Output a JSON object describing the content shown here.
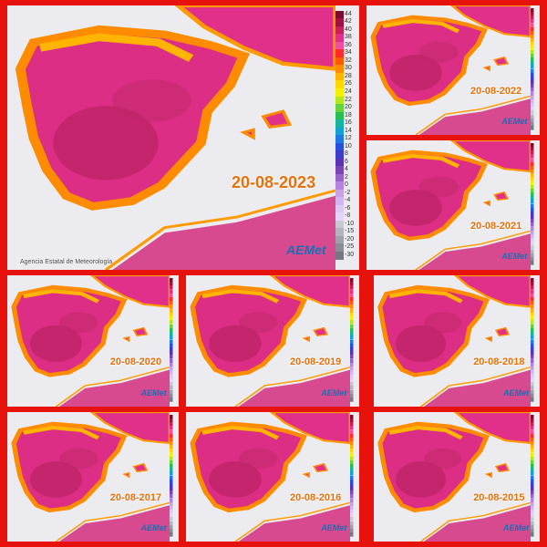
{
  "main": {
    "date": "20-08-2023",
    "scale_labels": [
      "44",
      "42",
      "40",
      "38",
      "36",
      "34",
      "32",
      "30",
      "28",
      "26",
      "24",
      "22",
      "20",
      "18",
      "16",
      "14",
      "12",
      "10",
      "8",
      "6",
      "4",
      "2",
      "0",
      "-2",
      "-4",
      "-6",
      "-8",
      "-10",
      "-15",
      "-20",
      "-25",
      "-30"
    ],
    "agency": "Agencia Estatal de Meteorología",
    "logo": "AEMet"
  },
  "panels": [
    {
      "date": "20-08-2022"
    },
    {
      "date": "20-08-2021"
    },
    {
      "date": "20-08-2020"
    },
    {
      "date": "20-08-2019"
    },
    {
      "date": "20-08-2018"
    },
    {
      "date": "20-08-2017"
    },
    {
      "date": "20-08-2016"
    },
    {
      "date": "20-08-2015"
    }
  ]
}
